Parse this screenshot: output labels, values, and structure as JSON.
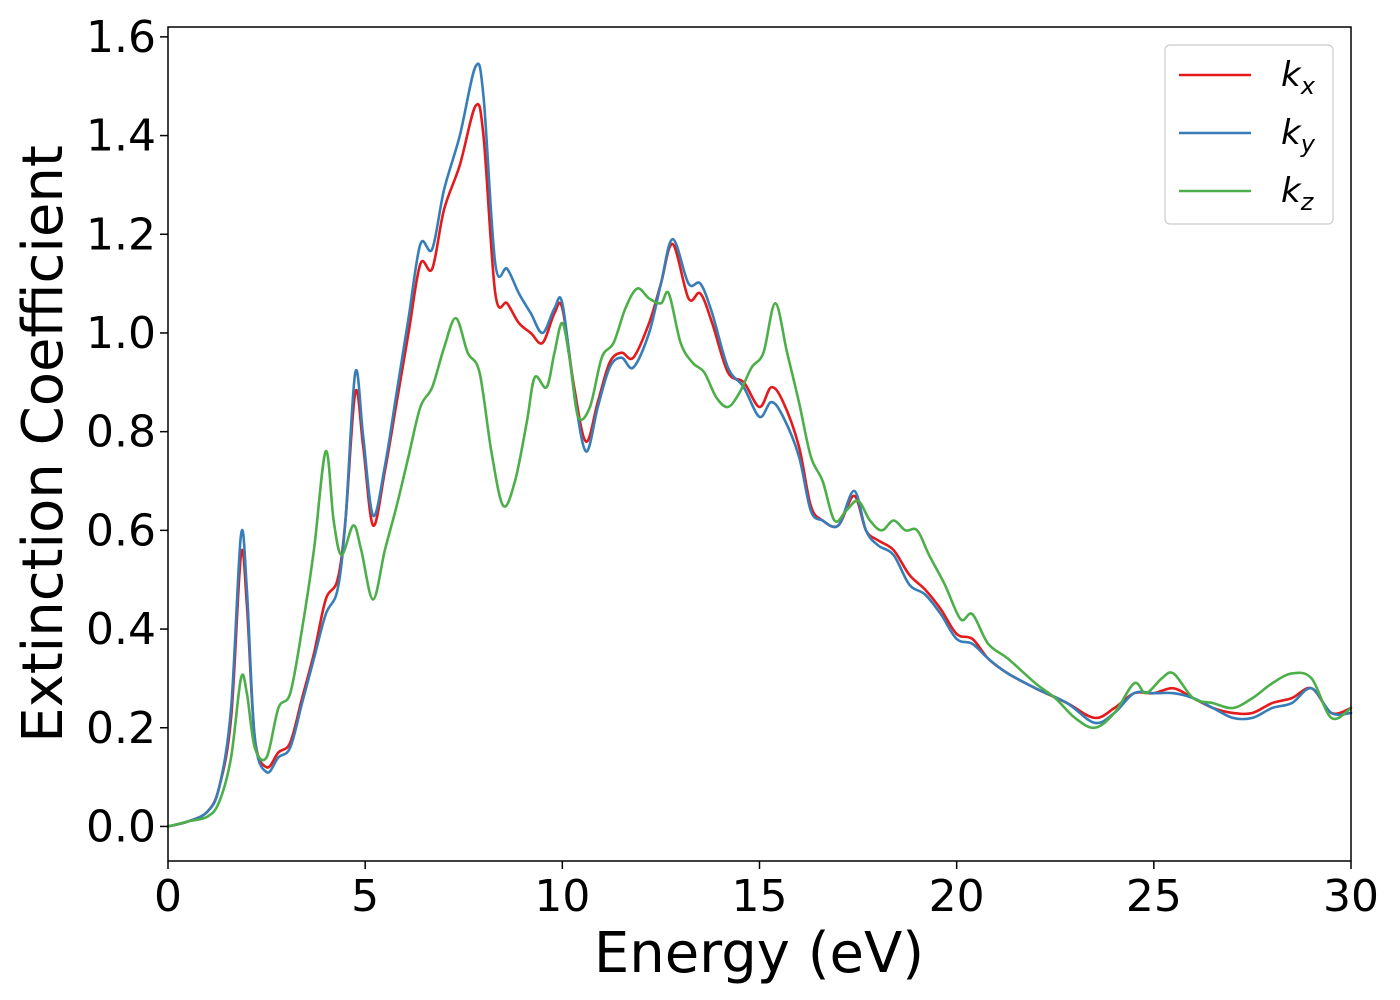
{
  "chart_data": {
    "type": "line",
    "xlabel": "Energy (eV)",
    "ylabel": "Extinction Coefficient",
    "xlim": [
      0,
      30
    ],
    "ylim": [
      -0.07,
      1.62
    ],
    "x_ticks": [
      0,
      5,
      10,
      15,
      20,
      25,
      30
    ],
    "x_tick_labels": [
      "0",
      "5",
      "10",
      "15",
      "20",
      "25",
      "30"
    ],
    "y_ticks": [
      0.0,
      0.2,
      0.4,
      0.6,
      0.8,
      1.0,
      1.2,
      1.4,
      1.6
    ],
    "y_tick_labels": [
      "0.0",
      "0.2",
      "0.4",
      "0.6",
      "0.8",
      "1.0",
      "1.2",
      "1.4",
      "1.6"
    ],
    "grid": false,
    "legend_position": "top-right",
    "series": [
      {
        "name": "k_x",
        "label_main": "k",
        "label_sub": "x",
        "color": "#e41a1c",
        "points": [
          [
            0,
            0
          ],
          [
            0.5,
            0.01
          ],
          [
            1.0,
            0.03
          ],
          [
            1.3,
            0.08
          ],
          [
            1.6,
            0.22
          ],
          [
            1.85,
            0.55
          ],
          [
            2.0,
            0.45
          ],
          [
            2.2,
            0.18
          ],
          [
            2.5,
            0.12
          ],
          [
            2.8,
            0.15
          ],
          [
            3.1,
            0.17
          ],
          [
            3.4,
            0.26
          ],
          [
            3.7,
            0.35
          ],
          [
            4.0,
            0.46
          ],
          [
            4.3,
            0.5
          ],
          [
            4.5,
            0.62
          ],
          [
            4.75,
            0.88
          ],
          [
            4.95,
            0.77
          ],
          [
            5.2,
            0.61
          ],
          [
            5.5,
            0.72
          ],
          [
            5.8,
            0.86
          ],
          [
            6.1,
            1.0
          ],
          [
            6.4,
            1.14
          ],
          [
            6.7,
            1.13
          ],
          [
            7.0,
            1.25
          ],
          [
            7.4,
            1.34
          ],
          [
            7.8,
            1.46
          ],
          [
            8.0,
            1.4
          ],
          [
            8.3,
            1.08
          ],
          [
            8.6,
            1.06
          ],
          [
            8.9,
            1.02
          ],
          [
            9.2,
            1.0
          ],
          [
            9.5,
            0.98
          ],
          [
            9.8,
            1.04
          ],
          [
            10.0,
            1.05
          ],
          [
            10.3,
            0.89
          ],
          [
            10.6,
            0.78
          ],
          [
            10.9,
            0.86
          ],
          [
            11.2,
            0.94
          ],
          [
            11.5,
            0.96
          ],
          [
            11.8,
            0.95
          ],
          [
            12.2,
            1.02
          ],
          [
            12.5,
            1.1
          ],
          [
            12.8,
            1.18
          ],
          [
            13.2,
            1.07
          ],
          [
            13.5,
            1.08
          ],
          [
            13.8,
            1.02
          ],
          [
            14.2,
            0.92
          ],
          [
            14.6,
            0.9
          ],
          [
            15.0,
            0.85
          ],
          [
            15.3,
            0.89
          ],
          [
            15.6,
            0.86
          ],
          [
            16.0,
            0.77
          ],
          [
            16.3,
            0.65
          ],
          [
            16.6,
            0.62
          ],
          [
            17.0,
            0.61
          ],
          [
            17.4,
            0.67
          ],
          [
            17.7,
            0.6
          ],
          [
            18.0,
            0.58
          ],
          [
            18.4,
            0.56
          ],
          [
            18.8,
            0.51
          ],
          [
            19.2,
            0.48
          ],
          [
            19.6,
            0.44
          ],
          [
            20.0,
            0.39
          ],
          [
            20.4,
            0.38
          ],
          [
            20.8,
            0.34
          ],
          [
            21.3,
            0.31
          ],
          [
            22.0,
            0.28
          ],
          [
            22.8,
            0.25
          ],
          [
            23.5,
            0.22
          ],
          [
            24.0,
            0.24
          ],
          [
            24.5,
            0.27
          ],
          [
            25.0,
            0.27
          ],
          [
            25.5,
            0.28
          ],
          [
            26.0,
            0.26
          ],
          [
            26.5,
            0.24
          ],
          [
            27.0,
            0.23
          ],
          [
            27.5,
            0.23
          ],
          [
            28.0,
            0.25
          ],
          [
            28.5,
            0.26
          ],
          [
            29.0,
            0.28
          ],
          [
            29.5,
            0.23
          ],
          [
            30.0,
            0.24
          ]
        ]
      },
      {
        "name": "k_y",
        "label_main": "k",
        "label_sub": "y",
        "color": "#377eb8",
        "points": [
          [
            0,
            0
          ],
          [
            0.5,
            0.01
          ],
          [
            1.0,
            0.03
          ],
          [
            1.3,
            0.08
          ],
          [
            1.6,
            0.24
          ],
          [
            1.85,
            0.59
          ],
          [
            2.0,
            0.48
          ],
          [
            2.2,
            0.18
          ],
          [
            2.5,
            0.11
          ],
          [
            2.8,
            0.14
          ],
          [
            3.1,
            0.16
          ],
          [
            3.4,
            0.25
          ],
          [
            3.7,
            0.34
          ],
          [
            4.0,
            0.43
          ],
          [
            4.3,
            0.48
          ],
          [
            4.5,
            0.62
          ],
          [
            4.75,
            0.92
          ],
          [
            4.95,
            0.79
          ],
          [
            5.2,
            0.63
          ],
          [
            5.5,
            0.73
          ],
          [
            5.8,
            0.88
          ],
          [
            6.1,
            1.03
          ],
          [
            6.4,
            1.18
          ],
          [
            6.7,
            1.17
          ],
          [
            7.0,
            1.29
          ],
          [
            7.4,
            1.4
          ],
          [
            7.8,
            1.54
          ],
          [
            8.0,
            1.48
          ],
          [
            8.3,
            1.14
          ],
          [
            8.6,
            1.13
          ],
          [
            8.9,
            1.08
          ],
          [
            9.2,
            1.04
          ],
          [
            9.5,
            1.0
          ],
          [
            9.8,
            1.05
          ],
          [
            10.0,
            1.06
          ],
          [
            10.3,
            0.88
          ],
          [
            10.6,
            0.76
          ],
          [
            10.9,
            0.85
          ],
          [
            11.2,
            0.93
          ],
          [
            11.5,
            0.95
          ],
          [
            11.8,
            0.93
          ],
          [
            12.2,
            1.0
          ],
          [
            12.5,
            1.1
          ],
          [
            12.8,
            1.19
          ],
          [
            13.2,
            1.1
          ],
          [
            13.5,
            1.1
          ],
          [
            13.8,
            1.04
          ],
          [
            14.2,
            0.93
          ],
          [
            14.6,
            0.89
          ],
          [
            15.0,
            0.83
          ],
          [
            15.3,
            0.86
          ],
          [
            15.6,
            0.83
          ],
          [
            16.0,
            0.75
          ],
          [
            16.3,
            0.64
          ],
          [
            16.6,
            0.62
          ],
          [
            17.0,
            0.61
          ],
          [
            17.4,
            0.68
          ],
          [
            17.7,
            0.6
          ],
          [
            18.0,
            0.57
          ],
          [
            18.4,
            0.55
          ],
          [
            18.8,
            0.49
          ],
          [
            19.2,
            0.47
          ],
          [
            19.6,
            0.43
          ],
          [
            20.0,
            0.38
          ],
          [
            20.4,
            0.37
          ],
          [
            20.8,
            0.34
          ],
          [
            21.3,
            0.31
          ],
          [
            22.0,
            0.28
          ],
          [
            22.8,
            0.25
          ],
          [
            23.5,
            0.21
          ],
          [
            24.0,
            0.23
          ],
          [
            24.5,
            0.27
          ],
          [
            25.0,
            0.27
          ],
          [
            25.5,
            0.27
          ],
          [
            26.0,
            0.26
          ],
          [
            26.5,
            0.24
          ],
          [
            27.0,
            0.22
          ],
          [
            27.5,
            0.22
          ],
          [
            28.0,
            0.24
          ],
          [
            28.5,
            0.25
          ],
          [
            29.0,
            0.28
          ],
          [
            29.5,
            0.23
          ],
          [
            30.0,
            0.23
          ]
        ]
      },
      {
        "name": "k_z",
        "label_main": "k",
        "label_sub": "z",
        "color": "#4daf4a",
        "points": [
          [
            0,
            0
          ],
          [
            0.5,
            0.01
          ],
          [
            1.0,
            0.02
          ],
          [
            1.3,
            0.05
          ],
          [
            1.6,
            0.14
          ],
          [
            1.85,
            0.3
          ],
          [
            2.0,
            0.27
          ],
          [
            2.2,
            0.16
          ],
          [
            2.5,
            0.14
          ],
          [
            2.8,
            0.24
          ],
          [
            3.1,
            0.27
          ],
          [
            3.4,
            0.4
          ],
          [
            3.7,
            0.56
          ],
          [
            4.0,
            0.76
          ],
          [
            4.2,
            0.62
          ],
          [
            4.4,
            0.55
          ],
          [
            4.7,
            0.61
          ],
          [
            4.9,
            0.56
          ],
          [
            5.2,
            0.46
          ],
          [
            5.5,
            0.56
          ],
          [
            5.8,
            0.65
          ],
          [
            6.1,
            0.75
          ],
          [
            6.4,
            0.85
          ],
          [
            6.7,
            0.89
          ],
          [
            7.0,
            0.97
          ],
          [
            7.3,
            1.03
          ],
          [
            7.6,
            0.96
          ],
          [
            7.9,
            0.92
          ],
          [
            8.2,
            0.76
          ],
          [
            8.5,
            0.65
          ],
          [
            8.8,
            0.7
          ],
          [
            9.1,
            0.82
          ],
          [
            9.3,
            0.91
          ],
          [
            9.6,
            0.89
          ],
          [
            9.8,
            0.96
          ],
          [
            10.0,
            1.02
          ],
          [
            10.2,
            0.94
          ],
          [
            10.4,
            0.83
          ],
          [
            10.7,
            0.85
          ],
          [
            11.0,
            0.95
          ],
          [
            11.3,
            0.98
          ],
          [
            11.6,
            1.05
          ],
          [
            11.9,
            1.09
          ],
          [
            12.2,
            1.07
          ],
          [
            12.5,
            1.06
          ],
          [
            12.7,
            1.08
          ],
          [
            13.0,
            0.98
          ],
          [
            13.3,
            0.94
          ],
          [
            13.6,
            0.92
          ],
          [
            13.9,
            0.87
          ],
          [
            14.2,
            0.85
          ],
          [
            14.5,
            0.88
          ],
          [
            14.8,
            0.93
          ],
          [
            15.1,
            0.96
          ],
          [
            15.4,
            1.06
          ],
          [
            15.7,
            0.96
          ],
          [
            16.0,
            0.86
          ],
          [
            16.3,
            0.75
          ],
          [
            16.6,
            0.7
          ],
          [
            16.9,
            0.62
          ],
          [
            17.2,
            0.64
          ],
          [
            17.5,
            0.66
          ],
          [
            17.8,
            0.62
          ],
          [
            18.1,
            0.6
          ],
          [
            18.4,
            0.62
          ],
          [
            18.7,
            0.6
          ],
          [
            19.0,
            0.6
          ],
          [
            19.3,
            0.55
          ],
          [
            19.7,
            0.49
          ],
          [
            20.1,
            0.42
          ],
          [
            20.4,
            0.43
          ],
          [
            20.8,
            0.37
          ],
          [
            21.3,
            0.34
          ],
          [
            22.0,
            0.29
          ],
          [
            22.5,
            0.26
          ],
          [
            23.0,
            0.22
          ],
          [
            23.5,
            0.2
          ],
          [
            24.0,
            0.23
          ],
          [
            24.5,
            0.29
          ],
          [
            24.8,
            0.27
          ],
          [
            25.2,
            0.3
          ],
          [
            25.5,
            0.31
          ],
          [
            26.0,
            0.26
          ],
          [
            26.5,
            0.25
          ],
          [
            27.0,
            0.24
          ],
          [
            27.5,
            0.26
          ],
          [
            28.0,
            0.29
          ],
          [
            28.5,
            0.31
          ],
          [
            29.0,
            0.3
          ],
          [
            29.5,
            0.22
          ],
          [
            30.0,
            0.24
          ]
        ]
      }
    ]
  }
}
